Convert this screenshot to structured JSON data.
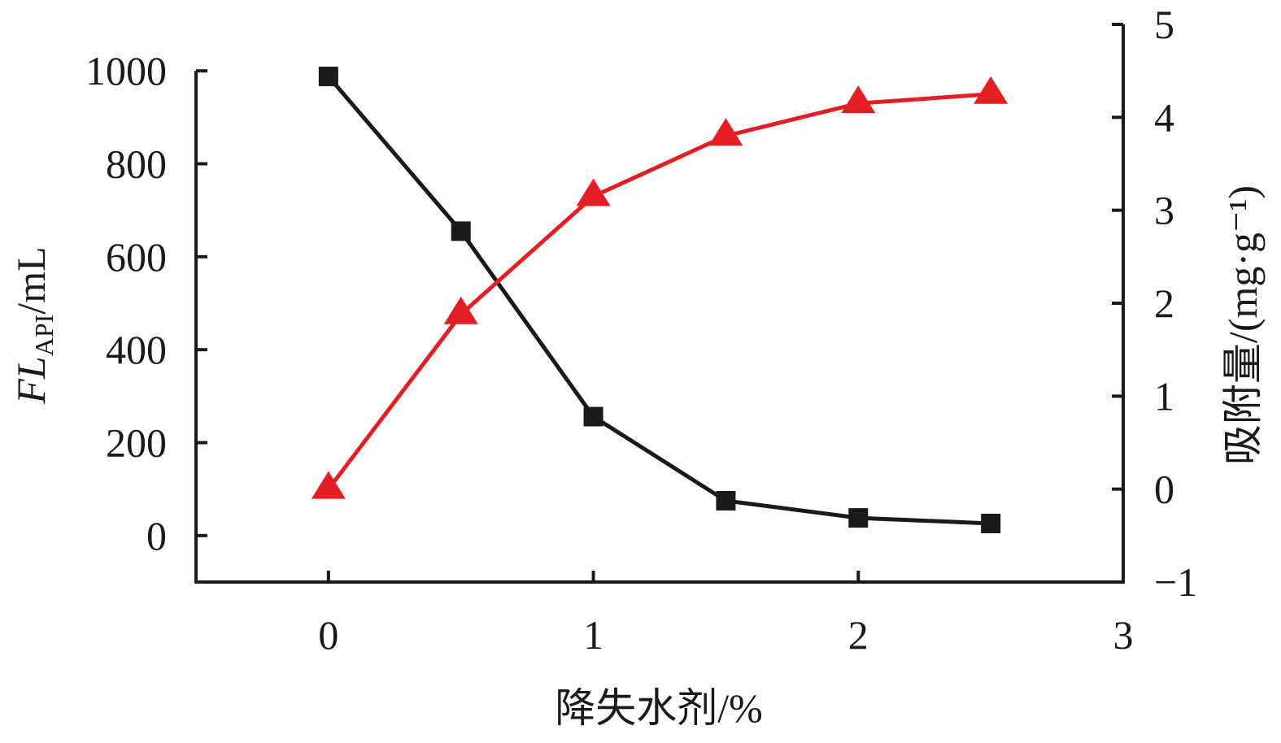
{
  "chart_data": {
    "type": "line",
    "x_label": "降失水剂/%",
    "y_label": {
      "main": "FL",
      "sub": "API",
      "unit": "/mL"
    },
    "y2_label": "吸附量/(mg·g⁻¹)",
    "x": [
      0,
      0.5,
      1,
      1.5,
      2,
      2.5
    ],
    "xlim": [
      -0.5,
      3
    ],
    "xticks": [
      0,
      1,
      2,
      3
    ],
    "ylim": [
      -100,
      1100
    ],
    "yticks": [
      0,
      200,
      400,
      600,
      800,
      1000
    ],
    "y2lim": [
      -1,
      5
    ],
    "y2ticks": [
      {
        "value": -1,
        "label": "−1"
      },
      0,
      1,
      2,
      3,
      4,
      5
    ],
    "series": [
      {
        "color": "#1a1a1a",
        "marker": "square",
        "values": [
          988,
          655,
          256,
          75,
          38,
          26
        ]
      },
      {
        "color": "#e31e24",
        "marker": "triangle",
        "axis": "y2",
        "values": [
          0,
          1.88,
          3.15,
          3.8,
          4.15,
          4.25
        ]
      }
    ]
  }
}
